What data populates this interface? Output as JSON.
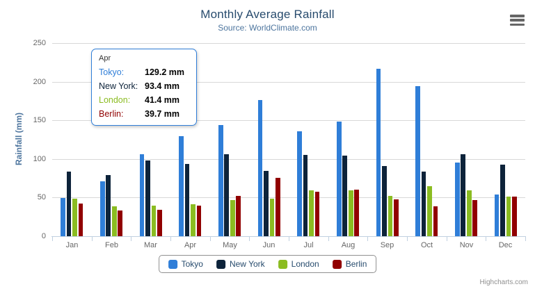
{
  "header": {
    "title": "Monthly Average Rainfall",
    "subtitle": "Source: WorldClimate.com"
  },
  "toolbar": {
    "menu_icon": "hamburger-icon"
  },
  "chart_data": {
    "type": "bar",
    "title": "Monthly Average Rainfall",
    "subtitle": "Source: WorldClimate.com",
    "categories": [
      "Jan",
      "Feb",
      "Mar",
      "Apr",
      "May",
      "Jun",
      "Jul",
      "Aug",
      "Sep",
      "Oct",
      "Nov",
      "Dec"
    ],
    "series": [
      {
        "name": "Tokyo",
        "color": "#2f7ed8",
        "values": [
          49.9,
          71.5,
          106.4,
          129.2,
          144.0,
          176.0,
          135.6,
          148.5,
          216.4,
          194.1,
          95.6,
          54.4
        ]
      },
      {
        "name": "New York",
        "color": "#0d233a",
        "values": [
          83.6,
          78.8,
          98.5,
          93.4,
          106.0,
          84.5,
          105.0,
          104.3,
          91.2,
          83.5,
          106.6,
          92.3
        ]
      },
      {
        "name": "London",
        "color": "#8bbc21",
        "values": [
          48.9,
          38.8,
          39.3,
          41.4,
          47.0,
          48.3,
          59.0,
          59.6,
          52.4,
          65.2,
          59.3,
          51.2
        ]
      },
      {
        "name": "Berlin",
        "color": "#910000",
        "values": [
          42.4,
          33.2,
          34.5,
          39.7,
          52.6,
          75.5,
          57.4,
          60.4,
          47.6,
          39.1,
          46.8,
          51.1
        ]
      }
    ],
    "xlabel": "",
    "ylabel": "Rainfall (mm)",
    "ylim": [
      0,
      250
    ],
    "yticks": [
      0,
      50,
      100,
      150,
      200,
      250
    ],
    "grid": true,
    "legend_position": "bottom"
  },
  "tooltip": {
    "header": "Apr",
    "border_color": "#2f7ed8",
    "rows": [
      {
        "label": "Tokyo:",
        "value": "129.2 mm",
        "color": "#2f7ed8"
      },
      {
        "label": "New York:",
        "value": "93.4 mm",
        "color": "#0d233a"
      },
      {
        "label": "London:",
        "value": "41.4 mm",
        "color": "#8bbc21"
      },
      {
        "label": "Berlin:",
        "value": "39.7 mm",
        "color": "#910000"
      }
    ]
  },
  "credits": {
    "label": "Highcharts.com"
  }
}
